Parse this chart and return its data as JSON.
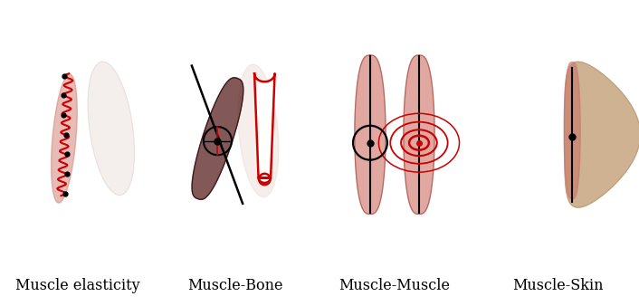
{
  "background_color": "#ffffff",
  "labels": [
    "Muscle elasticity",
    "Muscle-Bone",
    "Muscle-Muscle",
    "Muscle-Skin"
  ],
  "label_fontsize": 11.5,
  "fig_width": 7.06,
  "fig_height": 3.38,
  "muscle_color": "#d4847a",
  "muscle_dark_color": "#8b3a3a",
  "muscle_light_color": "#e8cfc8",
  "bone_white": "#f5f5f5",
  "skin_color": "#c8a882",
  "red_color": "#cc0000",
  "black_color": "#111111"
}
